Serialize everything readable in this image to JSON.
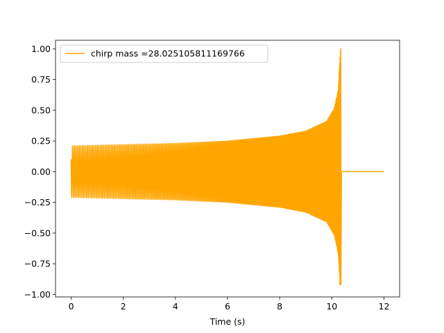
{
  "chart_data": {
    "type": "line",
    "title": "",
    "xlabel": "Time (s)",
    "ylabel": "",
    "xlim": [
      -0.6,
      12.6
    ],
    "ylim": [
      -1.02,
      1.07
    ],
    "grid": false,
    "legend_placement": "top-left",
    "xticks": [
      0,
      2,
      4,
      6,
      8,
      10,
      12
    ],
    "xtick_labels": [
      "0",
      "2",
      "4",
      "6",
      "8",
      "10",
      "12"
    ],
    "yticks": [
      -1.0,
      -0.75,
      -0.5,
      -0.25,
      0.0,
      0.25,
      0.5,
      0.75,
      1.0
    ],
    "ytick_labels": [
      "−1.00",
      "−0.75",
      "−0.50",
      "−0.25",
      "0.00",
      "0.25",
      "0.50",
      "0.75",
      "1.00"
    ],
    "series": [
      {
        "name": "chirp mass =28.025105811169766",
        "color": "#ffa500",
        "description_points": {
          "start_time": 0.0,
          "merger_time": 10.35,
          "end_time": 12.0,
          "envelope": [
            {
              "x": 0.0,
              "y": 0.21
            },
            {
              "x": 2.0,
              "y": 0.22
            },
            {
              "x": 4.0,
              "y": 0.23
            },
            {
              "x": 6.0,
              "y": 0.25
            },
            {
              "x": 8.0,
              "y": 0.29
            },
            {
              "x": 9.0,
              "y": 0.33
            },
            {
              "x": 9.8,
              "y": 0.41
            },
            {
              "x": 10.1,
              "y": 0.52
            },
            {
              "x": 10.25,
              "y": 0.68
            },
            {
              "x": 10.33,
              "y": 1.0
            }
          ],
          "min_value": -0.92,
          "max_value": 1.0,
          "post_merger_value": 0.0
        }
      }
    ]
  }
}
